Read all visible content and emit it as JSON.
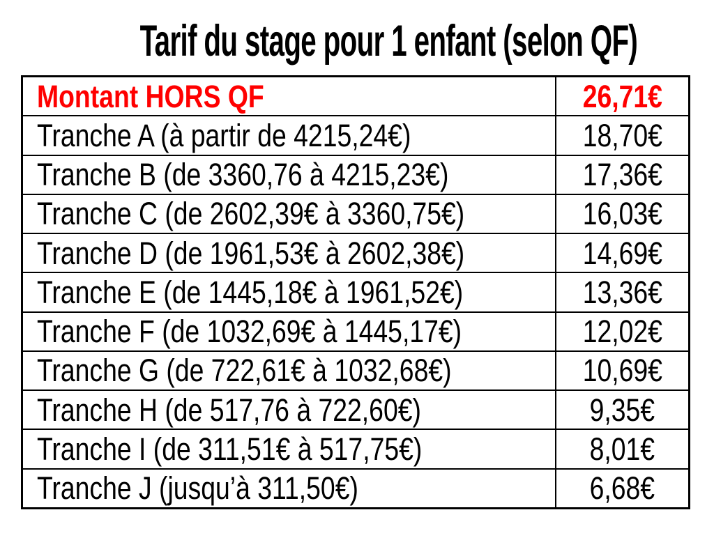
{
  "slide": {
    "title": "Tarif du stage pour 1 enfant (selon QF)",
    "background_color": "#ffffff"
  },
  "colors": {
    "highlight_red": "#ff0000",
    "text": "#000000",
    "border": "#000000"
  },
  "pricing_table": {
    "rows": [
      {
        "label": "Montant HORS QF",
        "amount": "26,71€"
      },
      {
        "label": "Tranche A (à partir de 4215,24€)",
        "amount": "18,70€"
      },
      {
        "label": "Tranche B (de 3360,76 à 4215,23€)",
        "amount": "17,36€"
      },
      {
        "label": "Tranche C (de 2602,39€ à 3360,75€)",
        "amount": "16,03€"
      },
      {
        "label": "Tranche D (de 1961,53€ à 2602,38€)",
        "amount": "14,69€"
      },
      {
        "label": "Tranche E (de 1445,18€ à 1961,52€)",
        "amount": "13,36€"
      },
      {
        "label": "Tranche F (de 1032,69€ à 1445,17€)",
        "amount": "12,02€"
      },
      {
        "label": "Tranche G (de 722,61€ à 1032,68€)",
        "amount": "10,69€"
      },
      {
        "label": "Tranche H (de 517,76 à 722,60€)",
        "amount": "9,35€"
      },
      {
        "label": "Tranche I (de 311,51€ à 517,75€)",
        "amount": "8,01€"
      },
      {
        "label": "Tranche J (jusqu’à 311,50€)",
        "amount": "6,68€"
      }
    ]
  }
}
